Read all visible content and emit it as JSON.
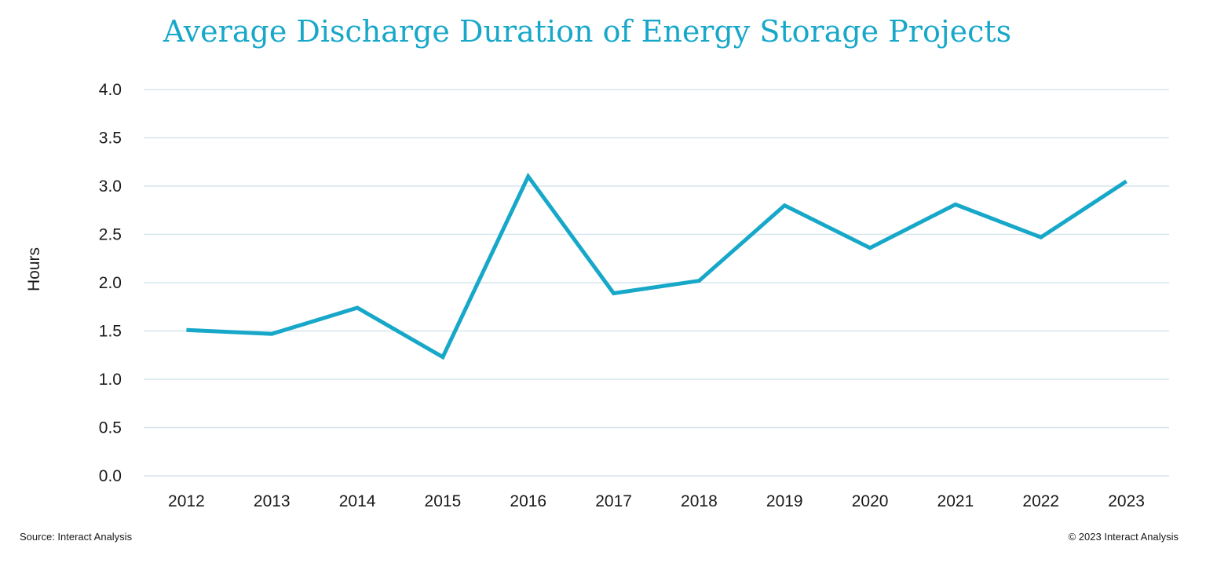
{
  "chart_data": {
    "type": "line",
    "title": "Average Discharge Duration of Energy Storage Projects",
    "xlabel": "",
    "ylabel": "Hours",
    "x": [
      "2012",
      "2013",
      "2014",
      "2015",
      "2016",
      "2017",
      "2018",
      "2019",
      "2020",
      "2021",
      "2022",
      "2023"
    ],
    "series": [
      {
        "values": [
          1.51,
          1.47,
          1.74,
          1.23,
          3.1,
          1.89,
          2.02,
          2.8,
          2.36,
          2.81,
          2.47,
          3.05
        ]
      }
    ],
    "ylim": [
      0,
      4.0
    ],
    "yticks": [
      "0.0",
      "0.5",
      "1.0",
      "1.5",
      "2.0",
      "2.5",
      "3.0",
      "3.5",
      "4.0"
    ],
    "grid": true,
    "legend": "none",
    "colors": {
      "title": "#17a8c9",
      "series": "#17a8c9",
      "grid": "#d6e6ee"
    }
  },
  "footer": {
    "source": "Source: Interact Analysis",
    "copyright": "© 2023 Interact Analysis"
  }
}
